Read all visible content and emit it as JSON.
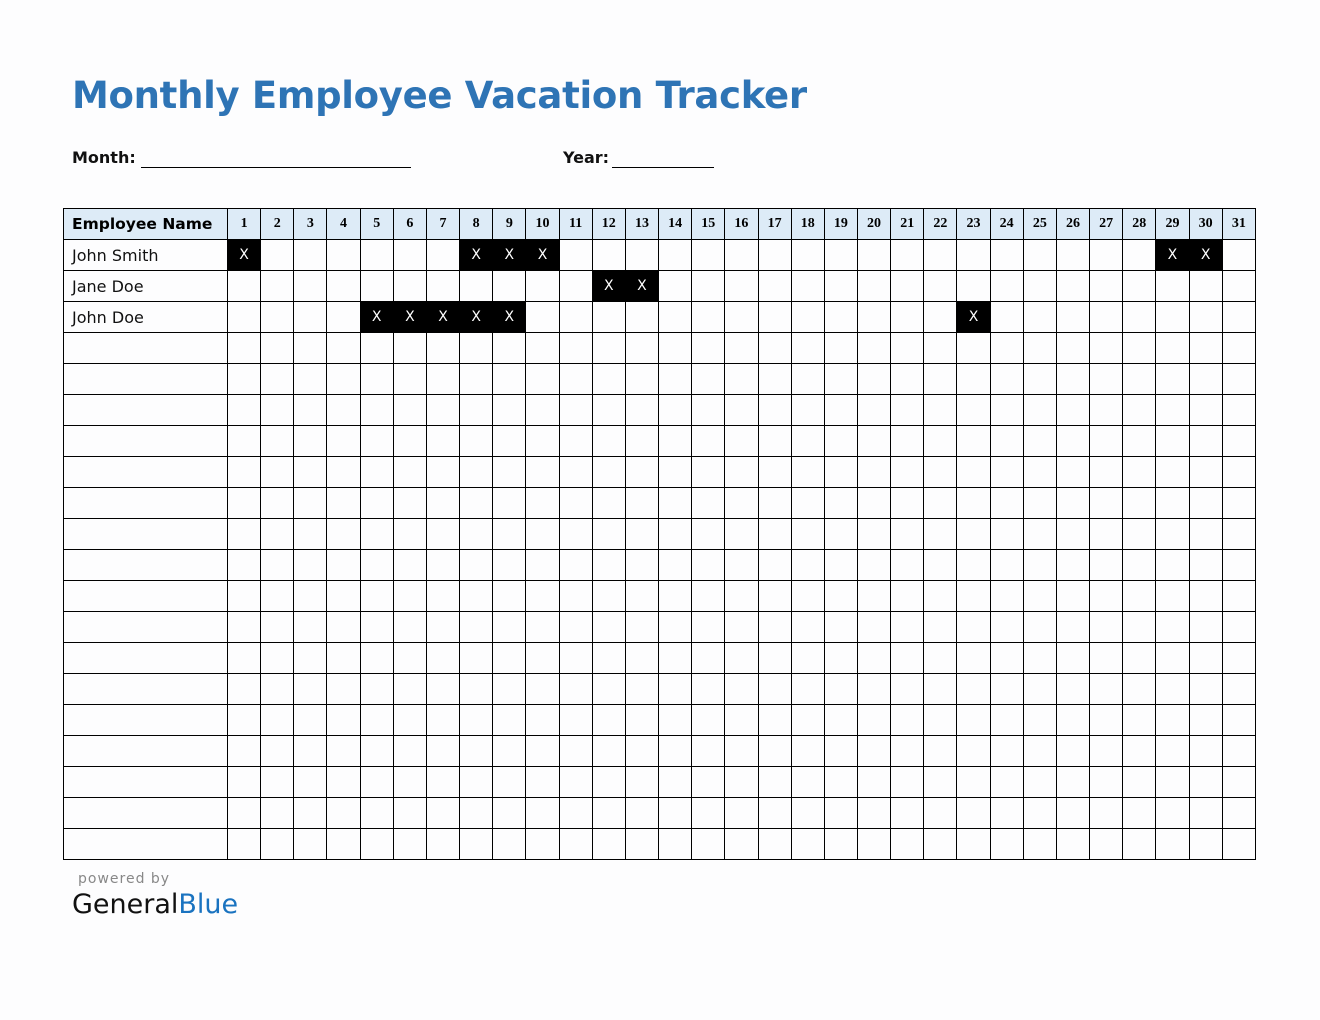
{
  "title": "Monthly Employee Vacation Tracker",
  "month_label": "Month:",
  "year_label": "Year:",
  "month_value": "",
  "year_value": "",
  "table": {
    "name_header": "Employee Name",
    "days": [
      "1",
      "2",
      "3",
      "4",
      "5",
      "6",
      "7",
      "8",
      "9",
      "10",
      "11",
      "12",
      "13",
      "14",
      "15",
      "16",
      "17",
      "18",
      "19",
      "20",
      "21",
      "22",
      "23",
      "24",
      "25",
      "26",
      "27",
      "28",
      "29",
      "30",
      "31"
    ],
    "mark": "X",
    "empty_rows": 17,
    "rows": [
      {
        "name": "John Smith",
        "off": [
          1,
          8,
          9,
          10,
          29,
          30
        ]
      },
      {
        "name": "Jane Doe",
        "off": [
          12,
          13
        ]
      },
      {
        "name": "John Doe",
        "off": [
          5,
          6,
          7,
          8,
          9,
          23
        ]
      }
    ]
  },
  "footer": {
    "powered_by": "powered by",
    "brand_general": "General",
    "brand_blue": "Blue"
  },
  "colors": {
    "title": "#2e74b5",
    "header_bg": "#ddebf7",
    "mark_bg": "#000000",
    "brand_blue": "#1a73c0"
  }
}
